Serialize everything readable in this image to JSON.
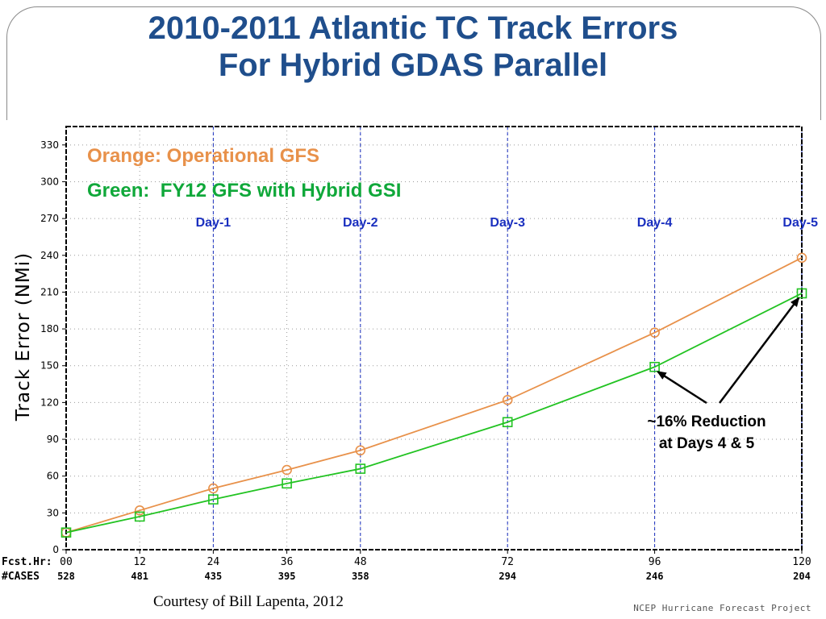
{
  "slide": {
    "title_line1": "2010-2011 Atlantic TC Track Errors",
    "title_line2": "For Hybrid GDAS Parallel",
    "credit": "Courtesy of Bill Lapenta, 2012",
    "footer": "NCEP Hurricane Forecast Project"
  },
  "chart_data": {
    "type": "line",
    "title": "",
    "ylabel": "Track Error (NMi)",
    "xlabel": "",
    "ylim": [
      0,
      345
    ],
    "xlim": [
      0,
      120
    ],
    "yticks": [
      0,
      30,
      60,
      90,
      120,
      150,
      180,
      210,
      240,
      270,
      300,
      330
    ],
    "grid": true,
    "x": [
      0,
      12,
      24,
      36,
      48,
      72,
      96,
      120
    ],
    "x_tick_labels": [
      "00",
      "12",
      "24",
      "36",
      "48",
      "72",
      "96",
      "120"
    ],
    "row_labels": {
      "fcst": "Fcst.Hr:",
      "cases": "#CASES"
    },
    "cases": [
      "528",
      "481",
      "435",
      "395",
      "358",
      "294",
      "246",
      "204"
    ],
    "series": [
      {
        "name": "Orange: Operational GFS",
        "color": "#e8914a",
        "marker": "circle",
        "values": [
          14,
          32,
          50,
          65,
          81,
          122,
          177,
          238
        ]
      },
      {
        "name": "Green:  FY12 GFS with Hybrid GSI",
        "color": "#22c322",
        "marker": "square",
        "values": [
          14,
          27,
          41,
          54,
          66,
          104,
          149,
          209
        ]
      }
    ],
    "day_markers": [
      {
        "label": "Day-1",
        "x": 24
      },
      {
        "label": "Day-2",
        "x": 48
      },
      {
        "label": "Day-3",
        "x": 72
      },
      {
        "label": "Day-4",
        "x": 96
      },
      {
        "label": "Day-5",
        "x": 120
      }
    ],
    "annotation": {
      "line1": "~16% Reduction",
      "line2": "at Days 4 & 5",
      "targets": [
        {
          "x": 96,
          "y": 149
        },
        {
          "x": 120,
          "y": 209
        }
      ]
    },
    "legend_colors": {
      "orange": "#e8914a",
      "green": "#10a83a",
      "day": "#1a2fbf"
    }
  }
}
